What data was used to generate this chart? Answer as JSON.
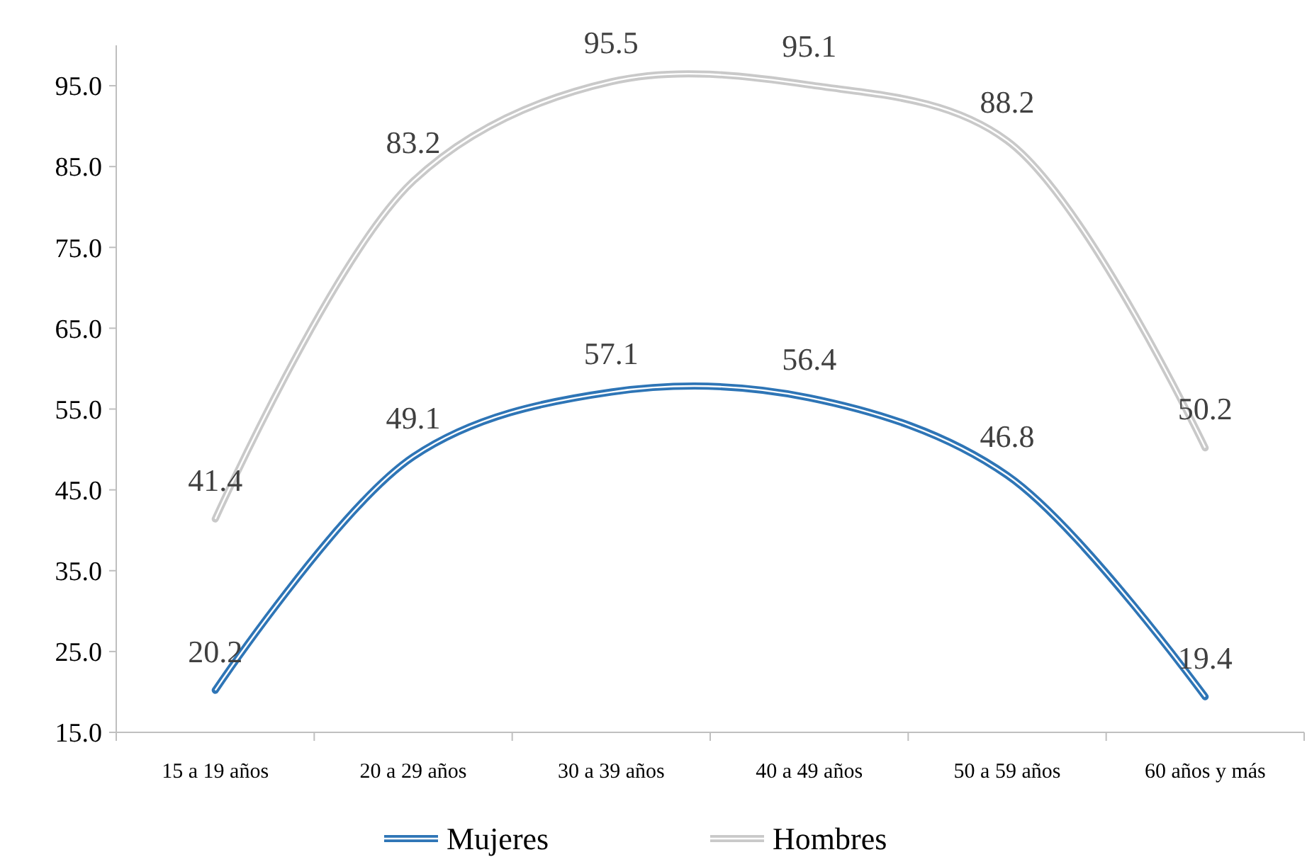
{
  "chart_data": {
    "type": "line",
    "categories": [
      "15 a 19 años",
      "20 a 29 años",
      "30 a 39 años",
      "40 a 49 años",
      "50 a 59 años",
      "60 años y más"
    ],
    "series": [
      {
        "name": "Mujeres",
        "color": "#2e75b6",
        "values": [
          20.2,
          49.1,
          57.1,
          56.4,
          46.8,
          19.4
        ]
      },
      {
        "name": "Hombres",
        "color": "#c9c9c9",
        "values": [
          41.4,
          83.2,
          95.5,
          95.1,
          88.2,
          50.2
        ]
      }
    ],
    "ylim": [
      15,
      100
    ],
    "yticks": [
      {
        "value": 15,
        "label": "15.0"
      },
      {
        "value": 25,
        "label": "25.0"
      },
      {
        "value": 35,
        "label": "35.0"
      },
      {
        "value": 45,
        "label": "45.0"
      },
      {
        "value": 55,
        "label": "55.0"
      },
      {
        "value": 65,
        "label": "65.0"
      },
      {
        "value": 75,
        "label": "75.0"
      },
      {
        "value": 85,
        "label": "85.0"
      },
      {
        "value": 95,
        "label": "95.0"
      }
    ],
    "grid": false,
    "legend": "bottom",
    "data_labels": true,
    "marker": "none",
    "line_style": "solid"
  }
}
